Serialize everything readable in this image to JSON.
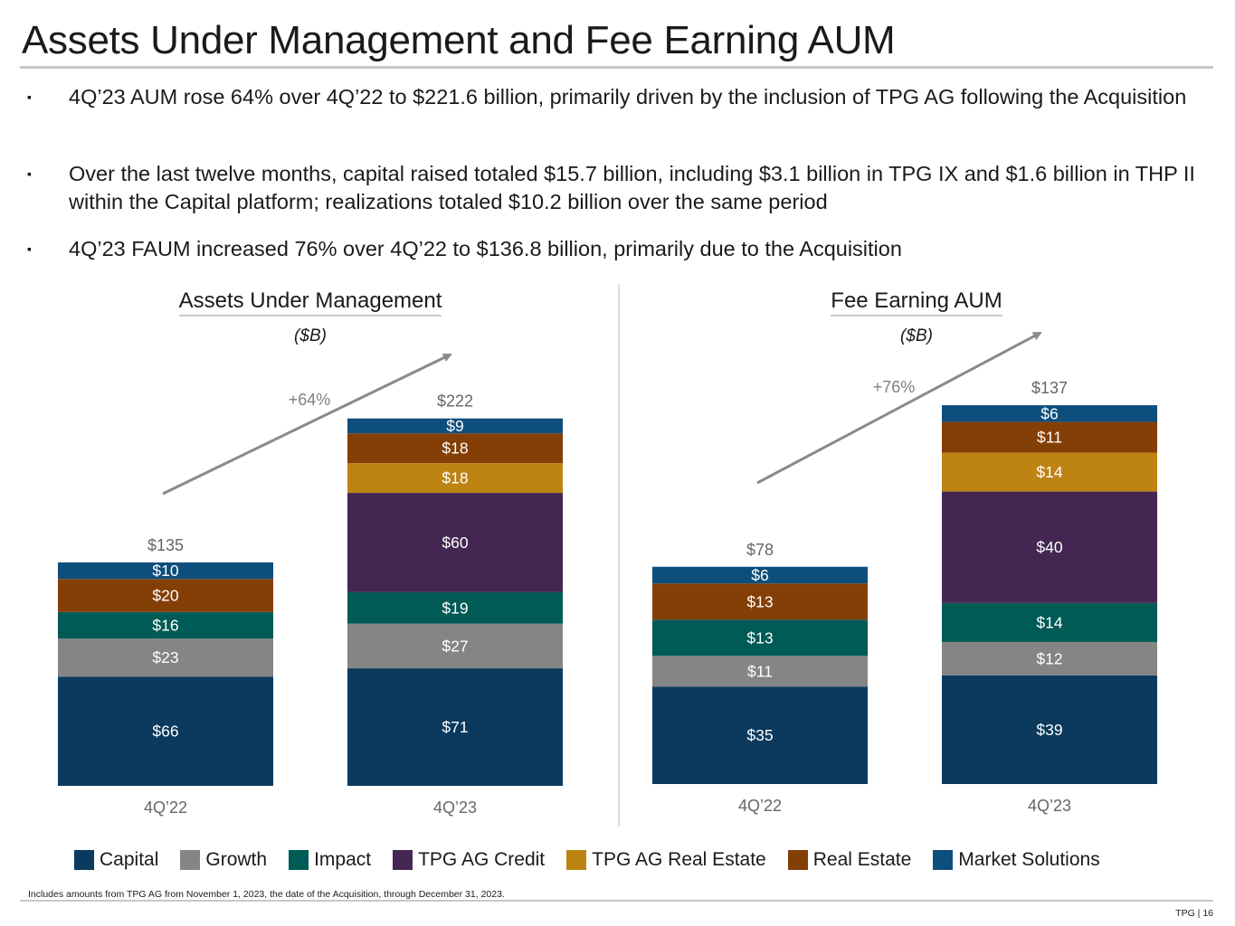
{
  "title": "Assets Under Management and Fee Earning AUM",
  "bullets": [
    "4Q’23 AUM rose 64% over 4Q’22 to $221.6 billion, primarily driven by the inclusion of TPG AG following the Acquisition",
    "Over the last twelve months, capital raised totaled $15.7 billion, including $3.1 billion in TPG IX and $1.6 billion in THP II within the Capital platform; realizations totaled $10.2 billion over the same period",
    "4Q’23 FAUM increased 76% over 4Q’22 to $136.8 billion, primarily due to the Acquisition"
  ],
  "bullet_mark": "▪",
  "legend": [
    {
      "name": "Capital",
      "color": "#0b3a5e"
    },
    {
      "name": "Growth",
      "color": "#858585"
    },
    {
      "name": "Impact",
      "color": "#005a55"
    },
    {
      "name": "TPG AG Credit",
      "color": "#432752"
    },
    {
      "name": "TPG AG Real Estate",
      "color": "#bd8313"
    },
    {
      "name": "Real Estate",
      "color": "#843f06"
    },
    {
      "name": "Market Solutions",
      "color": "#0e4e7c"
    }
  ],
  "chart_data": [
    {
      "type": "bar",
      "stacked": true,
      "title": "Assets Under Management",
      "unit_label": "($B)",
      "growth_label": "+64%",
      "categories": [
        "4Q’22",
        "4Q’23"
      ],
      "totals": [
        135,
        222
      ],
      "total_labels": [
        "$135",
        "$222"
      ],
      "series": [
        {
          "name": "Capital",
          "values": [
            66,
            71
          ],
          "labels": [
            "$66",
            "$71"
          ]
        },
        {
          "name": "Growth",
          "values": [
            23,
            27
          ],
          "labels": [
            "$23",
            "$27"
          ]
        },
        {
          "name": "Impact",
          "values": [
            16,
            19
          ],
          "labels": [
            "$16",
            "$19"
          ]
        },
        {
          "name": "TPG AG Credit",
          "values": [
            0,
            60
          ],
          "labels": [
            "",
            "$60"
          ]
        },
        {
          "name": "TPG AG Real Estate",
          "values": [
            0,
            18
          ],
          "labels": [
            "",
            "$18"
          ]
        },
        {
          "name": "Real Estate",
          "values": [
            20,
            18
          ],
          "labels": [
            "$20",
            "$18"
          ]
        },
        {
          "name": "Market Solutions",
          "values": [
            10,
            9
          ],
          "labels": [
            "$10",
            "$9"
          ]
        }
      ]
    },
    {
      "type": "bar",
      "stacked": true,
      "title": "Fee Earning AUM",
      "unit_label": "($B)",
      "growth_label": "+76%",
      "categories": [
        "4Q’22",
        "4Q’23"
      ],
      "totals": [
        78,
        137
      ],
      "total_labels": [
        "$78",
        "$137"
      ],
      "series": [
        {
          "name": "Capital",
          "values": [
            35,
            39
          ],
          "labels": [
            "$35",
            "$39"
          ]
        },
        {
          "name": "Growth",
          "values": [
            11,
            12
          ],
          "labels": [
            "$11",
            "$12"
          ]
        },
        {
          "name": "Impact",
          "values": [
            13,
            14
          ],
          "labels": [
            "$13",
            "$14"
          ]
        },
        {
          "name": "TPG AG Credit",
          "values": [
            0,
            40
          ],
          "labels": [
            "",
            "$40"
          ]
        },
        {
          "name": "TPG AG Real Estate",
          "values": [
            0,
            14
          ],
          "labels": [
            "",
            "$14"
          ]
        },
        {
          "name": "Real Estate",
          "values": [
            13,
            11
          ],
          "labels": [
            "$13",
            "$11"
          ]
        },
        {
          "name": "Market Solutions",
          "values": [
            6,
            6
          ],
          "labels": [
            "$6",
            "$6"
          ]
        }
      ]
    }
  ],
  "footnote": "Includes amounts from TPG AG from November 1, 2023, the date of the Acquisition, through December 31, 2023.",
  "page_number": "TPG | 16"
}
